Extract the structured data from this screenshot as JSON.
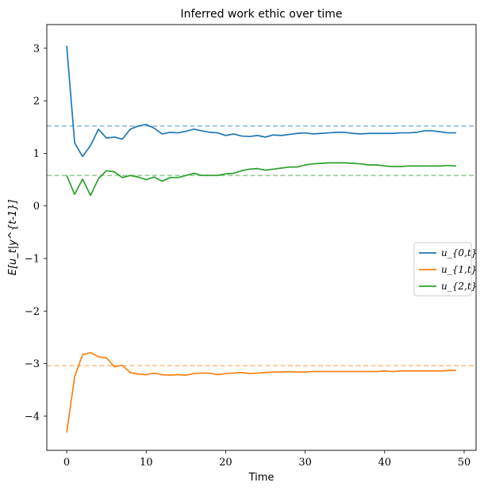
{
  "chart_data": {
    "type": "line",
    "title": "Inferred work ethic over time",
    "xlabel": "Time",
    "ylabel": "E[u_t|y^{t-1}]",
    "xlim": [
      -2.5,
      51.5
    ],
    "ylim": [
      -4.65,
      3.45
    ],
    "xticks": [
      0,
      10,
      20,
      30,
      40,
      50
    ],
    "yticks": [
      -4,
      -3,
      -2,
      -1,
      0,
      1,
      2,
      3
    ],
    "xtick_labels": [
      "0",
      "10",
      "20",
      "30",
      "40",
      "50"
    ],
    "ytick_labels": [
      "−4",
      "−3",
      "−2",
      "−1",
      "0",
      "1",
      "2",
      "3"
    ],
    "x": [
      0,
      1,
      2,
      3,
      4,
      5,
      6,
      7,
      8,
      9,
      10,
      11,
      12,
      13,
      14,
      15,
      16,
      17,
      18,
      19,
      20,
      21,
      22,
      23,
      24,
      25,
      26,
      27,
      28,
      29,
      30,
      31,
      32,
      33,
      34,
      35,
      36,
      37,
      38,
      39,
      40,
      41,
      42,
      43,
      44,
      45,
      46,
      47,
      48,
      49
    ],
    "series": [
      {
        "name": "u_{0,t}",
        "color": "#1f77b4",
        "values": [
          3.05,
          1.2,
          0.94,
          1.15,
          1.46,
          1.29,
          1.31,
          1.27,
          1.46,
          1.52,
          1.55,
          1.48,
          1.37,
          1.4,
          1.39,
          1.42,
          1.46,
          1.43,
          1.4,
          1.39,
          1.34,
          1.37,
          1.33,
          1.32,
          1.34,
          1.31,
          1.35,
          1.34,
          1.36,
          1.38,
          1.39,
          1.37,
          1.38,
          1.39,
          1.4,
          1.4,
          1.38,
          1.37,
          1.38,
          1.38,
          1.38,
          1.38,
          1.39,
          1.39,
          1.4,
          1.43,
          1.43,
          1.41,
          1.39,
          1.39
        ]
      },
      {
        "name": "u_{1,t}",
        "color": "#ff7f0e",
        "values": [
          -4.31,
          -3.25,
          -2.83,
          -2.79,
          -2.87,
          -2.89,
          -3.06,
          -3.03,
          -3.17,
          -3.2,
          -3.21,
          -3.18,
          -3.21,
          -3.22,
          -3.21,
          -3.22,
          -3.19,
          -3.18,
          -3.18,
          -3.21,
          -3.19,
          -3.18,
          -3.17,
          -3.19,
          -3.18,
          -3.17,
          -3.16,
          -3.16,
          -3.15,
          -3.16,
          -3.16,
          -3.15,
          -3.15,
          -3.15,
          -3.15,
          -3.15,
          -3.15,
          -3.15,
          -3.15,
          -3.15,
          -3.14,
          -3.15,
          -3.14,
          -3.14,
          -3.14,
          -3.14,
          -3.14,
          -3.14,
          -3.13,
          -3.13
        ]
      },
      {
        "name": "u_{2,t}",
        "color": "#2ca02c",
        "values": [
          0.58,
          0.22,
          0.51,
          0.2,
          0.52,
          0.67,
          0.65,
          0.54,
          0.58,
          0.55,
          0.5,
          0.55,
          0.47,
          0.54,
          0.54,
          0.58,
          0.62,
          0.58,
          0.58,
          0.58,
          0.61,
          0.62,
          0.67,
          0.7,
          0.71,
          0.68,
          0.7,
          0.72,
          0.74,
          0.74,
          0.78,
          0.8,
          0.81,
          0.82,
          0.82,
          0.82,
          0.81,
          0.8,
          0.78,
          0.78,
          0.76,
          0.75,
          0.75,
          0.76,
          0.76,
          0.76,
          0.76,
          0.76,
          0.77,
          0.76
        ]
      }
    ],
    "reference_lines": [
      {
        "series": "u_{0,t}",
        "value": 1.52,
        "color": "#8fbbd9"
      },
      {
        "series": "u_{1,t}",
        "value": -3.04,
        "color": "#ffbf86"
      },
      {
        "series": "u_{2,t}",
        "value": 0.58,
        "color": "#95cf95"
      }
    ],
    "legend_placement": "center-right",
    "grid": false
  }
}
